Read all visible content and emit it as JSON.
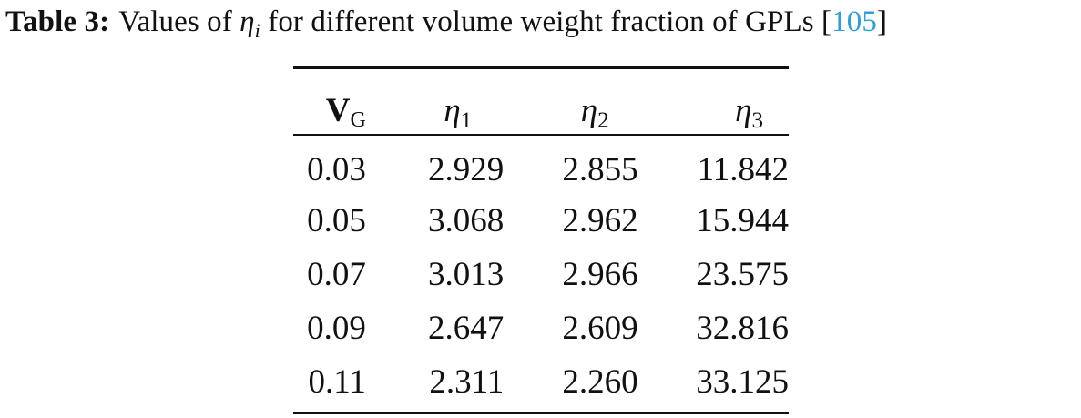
{
  "caption": {
    "label": "Table 3:",
    "text_before": "Values of ",
    "symbol": "η",
    "symbol_sub": "i",
    "text_after": " for different volume weight fraction of GPLs ",
    "cite_open": "[",
    "cite_num": "105",
    "cite_close": "]"
  },
  "table": {
    "headers": [
      {
        "symbol": "V",
        "sub": "G"
      },
      {
        "symbol": "η",
        "sub": "1"
      },
      {
        "symbol": "η",
        "sub": "2"
      },
      {
        "symbol": "η",
        "sub": "3"
      }
    ],
    "rows": [
      [
        "0.03",
        "2.929",
        "2.855",
        "11.842"
      ],
      [
        "0.05",
        "3.068",
        "2.962",
        "15.944"
      ],
      [
        "0.07",
        "3.013",
        "2.966",
        "23.575"
      ],
      [
        "0.09",
        "2.647",
        "2.609",
        "32.816"
      ],
      [
        "0.11",
        "2.311",
        "2.260",
        "33.125"
      ]
    ]
  },
  "colors": {
    "text": "#111111",
    "citation": "#2f9fd8"
  }
}
